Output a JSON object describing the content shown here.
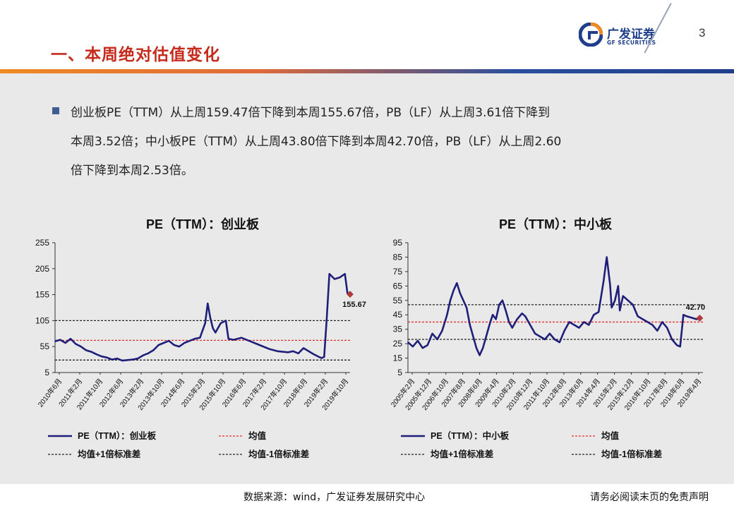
{
  "header": {
    "title": "一、本周绝对估值变化",
    "logo_cn": "广发证券",
    "logo_en": "GF SECURITIES",
    "page_number": "3"
  },
  "bullet": {
    "lines": [
      "创业板PE（TTM）从上周159.47倍下降到本周155.67倍，PB（LF）从上周3.61倍下降到",
      "本周3.52倍；中小板PE（TTM）从上周43.80倍下降到本周42.70倍，PB（LF）从上周2.60",
      "倍下降到本周2.53倍。"
    ]
  },
  "footer": {
    "source": "数据来源：wind，广发证券发展研究中心",
    "disclaimer": "请务必阅读末页的免责声明"
  },
  "colors": {
    "series": "#1f1f7a",
    "mean": "#e03030",
    "std": "#222222",
    "accent": "#c62a1c"
  },
  "chart_data": [
    {
      "type": "line",
      "title": "PE（TTM）：创业板",
      "ylim": [
        5,
        255
      ],
      "yticks": [
        5,
        55,
        105,
        155,
        205,
        255
      ],
      "x_tick_labels": [
        "2010年6月",
        "2011年2月",
        "2011年10月",
        "2012年6月",
        "2013年2月",
        "2013年10月",
        "2014年6月",
        "2015年2月",
        "2015年10月",
        "2016年6月",
        "2017年2月",
        "2017年10月",
        "2018年6月",
        "2019年2月",
        "2019年10月"
      ],
      "x_range": [
        "2010-06",
        "2019-12"
      ],
      "series": [
        {
          "name": "PE（TTM）：创业板",
          "x": [
            "2010-06",
            "2010-08",
            "2010-10",
            "2010-12",
            "2011-02",
            "2011-04",
            "2011-06",
            "2011-08",
            "2011-10",
            "2011-12",
            "2012-02",
            "2012-04",
            "2012-06",
            "2012-08",
            "2012-10",
            "2012-12",
            "2013-02",
            "2013-04",
            "2013-06",
            "2013-08",
            "2013-10",
            "2013-12",
            "2014-02",
            "2014-04",
            "2014-06",
            "2014-08",
            "2014-10",
            "2014-12",
            "2015-02",
            "2015-04",
            "2015-05",
            "2015-06",
            "2015-07",
            "2015-08",
            "2015-10",
            "2015-12",
            "2016-01",
            "2016-03",
            "2016-06",
            "2016-09",
            "2016-12",
            "2017-02",
            "2017-05",
            "2017-08",
            "2017-10",
            "2017-12",
            "2018-02",
            "2018-04",
            "2018-06",
            "2018-08",
            "2018-10",
            "2018-12",
            "2019-01",
            "2019-02",
            "2019-03",
            "2019-04",
            "2019-06",
            "2019-08",
            "2019-10",
            "2019-11",
            "2019-12"
          ],
          "values": [
            65,
            68,
            62,
            70,
            60,
            55,
            48,
            45,
            40,
            36,
            34,
            30,
            32,
            28,
            29,
            30,
            32,
            38,
            42,
            48,
            58,
            62,
            66,
            58,
            55,
            62,
            66,
            70,
            72,
            100,
            138,
            110,
            90,
            82,
            100,
            105,
            70,
            68,
            72,
            66,
            60,
            56,
            50,
            46,
            45,
            44,
            46,
            42,
            52,
            46,
            40,
            35,
            33,
            35,
            110,
            195,
            185,
            188,
            195,
            158,
            155.67
          ]
        },
        {
          "name": "均值",
          "value": 67
        },
        {
          "name": "均值+1倍标准差",
          "value": 105
        },
        {
          "name": "均值-1倍标准差",
          "value": 29
        }
      ],
      "last_label": "155.67",
      "legend": [
        "PE（TTM）：创业板",
        "均值",
        "均值+1倍标准差",
        "均值-1倍标准差"
      ]
    },
    {
      "type": "line",
      "title": "PE（TTM）：中小板",
      "ylim": [
        5,
        95
      ],
      "yticks": [
        5,
        15,
        25,
        35,
        45,
        55,
        65,
        75,
        85,
        95
      ],
      "x_tick_labels": [
        "2005年2月",
        "2005年12月",
        "2006年10月",
        "2007年8月",
        "2008年6月",
        "2009年4月",
        "2010年2月",
        "2010年12月",
        "2011年10月",
        "2012年8月",
        "2013年6月",
        "2014年4月",
        "2015年2月",
        "2015年12月",
        "2016年10月",
        "2017年8月",
        "2018年6月",
        "2019年4月"
      ],
      "x_range": [
        "2005-02",
        "2020-03"
      ],
      "series": [
        {
          "name": "PE（TTM）：中小板",
          "x": [
            "2005-02",
            "2005-05",
            "2005-08",
            "2005-11",
            "2006-02",
            "2006-05",
            "2006-08",
            "2006-11",
            "2007-02",
            "2007-04",
            "2007-06",
            "2007-08",
            "2007-10",
            "2007-12",
            "2008-02",
            "2008-04",
            "2008-06",
            "2008-08",
            "2008-10",
            "2008-12",
            "2009-02",
            "2009-04",
            "2009-06",
            "2009-08",
            "2009-10",
            "2009-12",
            "2010-02",
            "2010-04",
            "2010-06",
            "2010-09",
            "2010-12",
            "2011-02",
            "2011-05",
            "2011-08",
            "2011-11",
            "2012-02",
            "2012-05",
            "2012-08",
            "2012-11",
            "2013-02",
            "2013-05",
            "2013-08",
            "2013-11",
            "2014-02",
            "2014-05",
            "2014-08",
            "2014-11",
            "2015-02",
            "2015-04",
            "2015-06",
            "2015-07",
            "2015-09",
            "2015-11",
            "2015-12",
            "2016-02",
            "2016-05",
            "2016-08",
            "2016-11",
            "2017-02",
            "2017-05",
            "2017-08",
            "2017-11",
            "2018-02",
            "2018-05",
            "2018-08",
            "2018-11",
            "2019-01",
            "2019-03",
            "2019-05",
            "2019-08",
            "2019-11",
            "2020-01"
          ],
          "values": [
            26,
            23,
            27,
            22,
            24,
            32,
            28,
            34,
            45,
            55,
            62,
            67,
            60,
            55,
            50,
            38,
            30,
            22,
            17,
            22,
            30,
            38,
            45,
            42,
            52,
            55,
            48,
            40,
            36,
            42,
            46,
            44,
            38,
            32,
            30,
            28,
            32,
            28,
            26,
            34,
            40,
            38,
            36,
            40,
            38,
            45,
            47,
            68,
            85,
            66,
            50,
            55,
            65,
            48,
            58,
            55,
            52,
            44,
            42,
            40,
            38,
            34,
            40,
            36,
            28,
            24,
            23,
            45,
            44,
            43,
            42,
            42.7
          ]
        },
        {
          "name": "均值",
          "value": 40
        },
        {
          "name": "均值+1倍标准差",
          "value": 52
        },
        {
          "name": "均值-1倍标准差",
          "value": 28
        }
      ],
      "last_label": "42.70",
      "legend": [
        "PE（TTM）：中小板",
        "均值",
        "均值+1倍标准差",
        "均值-1倍标准差"
      ]
    }
  ]
}
